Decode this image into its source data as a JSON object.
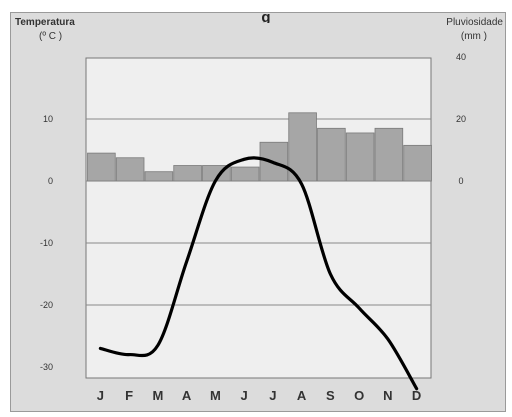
{
  "partial_heading": "g",
  "chart_data": {
    "type": "bar+line",
    "title": "",
    "categories": [
      "J",
      "F",
      "M",
      "A",
      "M",
      "J",
      "J",
      "A",
      "S",
      "O",
      "N",
      "D"
    ],
    "left_axis": {
      "label_line1": "Temperatura",
      "label_line2": "(º C )",
      "ticks": [
        10,
        0,
        -10,
        -20,
        -30
      ],
      "range": [
        -30,
        10
      ]
    },
    "right_axis": {
      "label_line1": "Pluviosidade",
      "label_line2": "(mm )",
      "ticks": [
        40,
        20,
        0
      ],
      "range": [
        0,
        40
      ]
    },
    "grid": true,
    "series": [
      {
        "type": "bar",
        "axis": "right",
        "color": "#a6a6a6",
        "values": [
          9,
          7.5,
          3,
          5,
          5,
          4.5,
          12.5,
          22,
          17,
          15.5,
          17,
          11.5
        ]
      },
      {
        "type": "line",
        "axis": "left",
        "color": "#000000",
        "values": [
          -27,
          -28,
          -26.5,
          -13,
          0,
          3.5,
          3,
          -0.5,
          -15,
          -20.5,
          -25.5,
          -33.5
        ]
      }
    ]
  }
}
